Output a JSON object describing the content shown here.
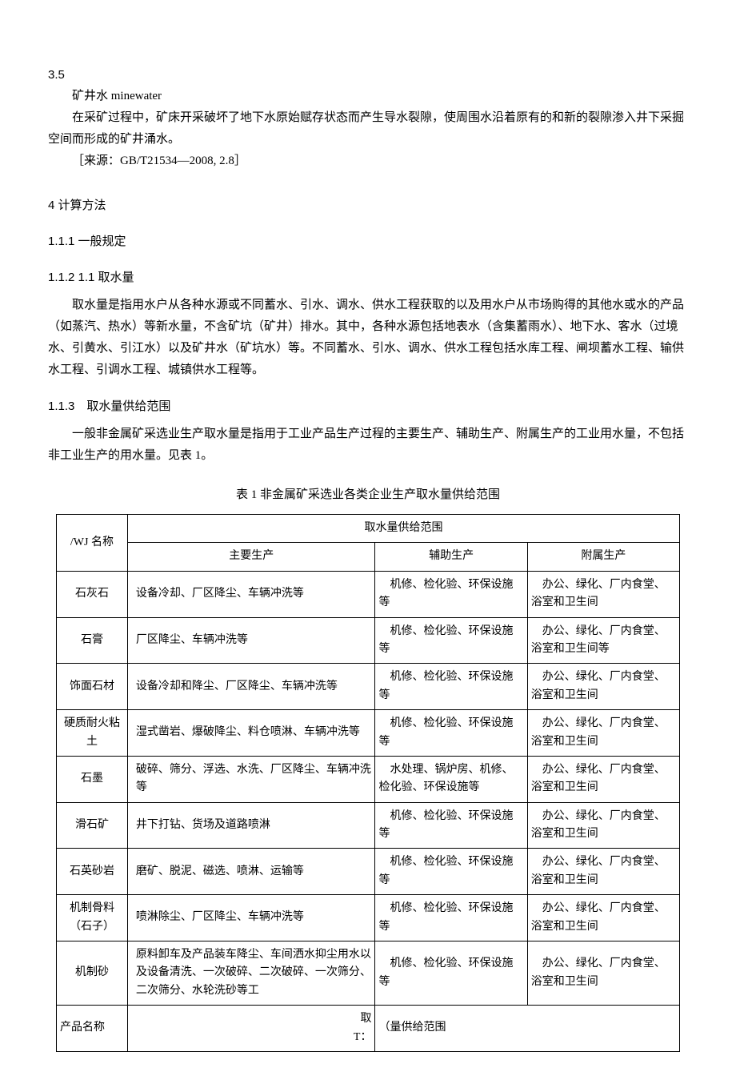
{
  "section35": {
    "num": "3.5",
    "term": "矿井水 minewater",
    "def": "在采矿过程中，矿床开采破坏了地下水原始赋存状态而产生导水裂隙，使周围水沿着原有的和新的裂隙渗入井下采掘空间而形成的矿井涌水。",
    "source": "［来源：GB/T21534—2008, 2.8］"
  },
  "section4": {
    "title": "4 计算方法",
    "h_111": "1.1.1 一般规定",
    "h_112": "1.1.2 1.1 取水量",
    "p_112": "取水量是指用水户从各种水源或不同蓄水、引水、调水、供水工程获取的以及用水户从市场购得的其他水或水的产品（如蒸汽、热水）等新水量，不含矿坑（矿井）排水。其中，各种水源包括地表水（含集蓄雨水）、地下水、客水（过境水、引黄水、引江水）以及矿井水（矿坑水）等。不同蓄水、引水、调水、供水工程包括水库工程、闸坝蓄水工程、输供水工程、引调水工程、城镇供水工程等。",
    "h_113": "1.1.3　取水量供给范围",
    "p_113": "一般非金属矿采选业生产取水量是指用于工业产品生产过程的主要生产、辅助生产、附属生产的工业用水量，不包括非工业生产的用水量。见表 1。"
  },
  "table1": {
    "caption": "表 1 非金属矿采选业各类企业生产取水量供给范围",
    "head_col1": "/WJ 名称",
    "head_span": "取水量供给范围",
    "head_main": "主要生产",
    "head_aux": "辅助生产",
    "head_aff": "附属生产",
    "rows": [
      {
        "name": "石灰石",
        "main": "设备冷却、厂区降尘、车辆冲洗等",
        "aux": "　机修、检化验、环保设施等",
        "aff": "　办公、绿化、厂内食堂、浴室和卫生间"
      },
      {
        "name": "石膏",
        "main": "厂区降尘、车辆冲洗等",
        "aux": "　机修、检化验、环保设施等",
        "aff": "　办公、绿化、厂内食堂、浴室和卫生间等"
      },
      {
        "name": "饰面石材",
        "main": "设备冷却和降尘、厂区降尘、车辆冲洗等",
        "aux": "　机修、检化验、环保设施等",
        "aff": "　办公、绿化、厂内食堂、浴室和卫生间"
      },
      {
        "name": "硬质耐火粘土",
        "main": "湿式凿岩、爆破降尘、料仓喷淋、车辆冲洗等",
        "aux": "　机修、检化验、环保设施等",
        "aff": "　办公、绿化、厂内食堂、浴室和卫生间"
      },
      {
        "name": "石墨",
        "main": "破碎、筛分、浮选、水洗、厂区降尘、车辆冲洗等",
        "aux": "　水处理、锅炉房、机修、检化验、环保设施等",
        "aff": "　办公、绿化、厂内食堂、浴室和卫生间"
      },
      {
        "name": "滑石矿",
        "main": "井下打钻、货场及道路喷淋",
        "aux": "　机修、检化验、环保设施等",
        "aff": "　办公、绿化、厂内食堂、浴室和卫生间"
      },
      {
        "name": "石英砂岩",
        "main": "磨矿、脱泥、磁选、喷淋、运输等",
        "aux": "　机修、检化验、环保设施等",
        "aff": "　办公、绿化、厂内食堂、浴室和卫生间"
      },
      {
        "name": "机制骨料（石子）",
        "main": "喷淋除尘、厂区降尘、车辆冲洗等",
        "aux": "　机修、检化验、环保设施等",
        "aff": "　办公、绿化、厂内食堂、浴室和卫生间"
      },
      {
        "name": "机制砂",
        "main": "原料卸车及产品装车降尘、车间洒水抑尘用水以及设备清洗、一次破碎、二次破碎、一次筛分、二次筛分、水轮洗砂等工",
        "aux": "　机修、检化验、环保设施等",
        "aff": "　办公、绿化、厂内食堂、浴室和卫生间"
      }
    ],
    "footer_left": "产品名称",
    "footer_mid": "取\nT：",
    "footer_right": "（量供给范围"
  }
}
